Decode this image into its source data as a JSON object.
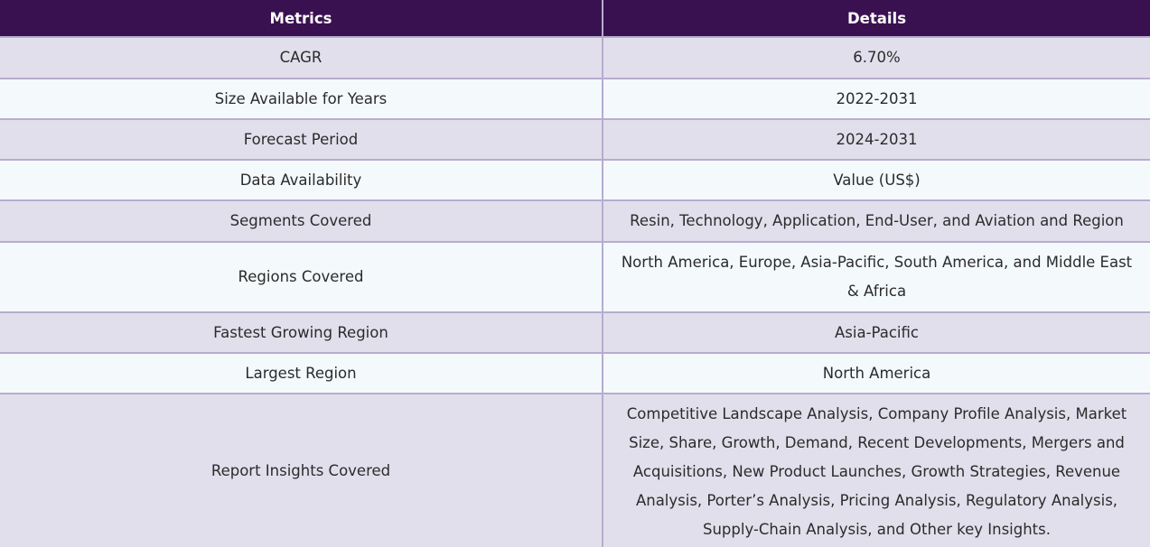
{
  "table": {
    "headers": [
      "Metrics",
      "Details"
    ],
    "rows": [
      {
        "metric": "CAGR",
        "detail": "6.70%"
      },
      {
        "metric": "Size Available for Years",
        "detail": "2022-2031"
      },
      {
        "metric": "Forecast Period",
        "detail": "2024-2031"
      },
      {
        "metric": "Data Availability",
        "detail": "Value (US$)"
      },
      {
        "metric": "Segments Covered",
        "detail": "Resin, Technology, Application, End-User, and Aviation and Region"
      },
      {
        "metric": "Regions Covered",
        "detail": "North America, Europe, Asia-Pacific, South America, and Middle East & Africa"
      },
      {
        "metric": "Fastest Growing Region",
        "detail": "Asia-Pacific"
      },
      {
        "metric": "Largest Region",
        "detail": "North America"
      },
      {
        "metric": "Report Insights Covered",
        "detail": "Competitive Landscape Analysis, Company Profile Analysis, Market Size, Share, Growth, Demand, Recent Developments, Mergers and Acquisitions, New Product Launches, Growth Strategies, Revenue Analysis, Porter’s Analysis, Pricing Analysis, Regulatory Analysis, Supply-Chain Analysis, and Other key Insights."
      }
    ]
  },
  "colors": {
    "header_bg": "#3a1150",
    "row_odd_bg": "#e2dfec",
    "row_even_bg": "#f4f9fc",
    "border": "#b7acd0"
  }
}
